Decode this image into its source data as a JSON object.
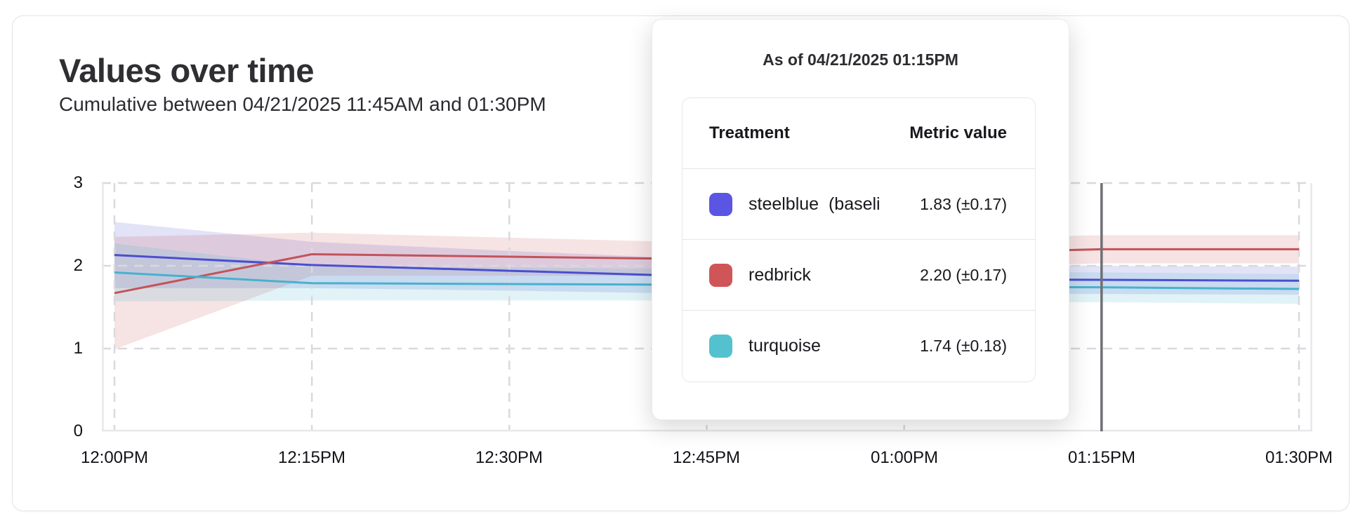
{
  "card": {
    "title": "Values over time",
    "subtitle": "Cumulative between 04/21/2025 11:45AM and 01:30PM"
  },
  "tooltip": {
    "title": "As of 04/21/2025 01:15PM",
    "columns": [
      "Treatment",
      "Metric value"
    ],
    "rows": [
      {
        "label": "steelblue  (baseli",
        "value": "1.83 (±0.17)",
        "swatch": "#5b55e3"
      },
      {
        "label": "redbrick",
        "value": "2.20 (±0.17)",
        "swatch": "#d05558"
      },
      {
        "label": "turquoise",
        "value": "1.74 (±0.18)",
        "swatch": "#53c2ce"
      }
    ]
  },
  "chart_data": {
    "type": "line",
    "title": "Values over time",
    "x": [
      "12:00PM",
      "12:15PM",
      "12:30PM",
      "12:45PM",
      "01:00PM",
      "01:15PM",
      "01:30PM"
    ],
    "y_ticks": [
      0,
      1,
      2,
      3
    ],
    "ylim": [
      0,
      3
    ],
    "grid": true,
    "hover_x": "01:15PM",
    "hover_line_color": "#6f6f73",
    "series": [
      {
        "name": "steelblue (baseline)",
        "color": "#4a4ecf",
        "values": [
          2.13,
          2.01,
          1.94,
          1.87,
          1.84,
          1.83,
          1.82
        ],
        "halfwidth": [
          0.4,
          0.28,
          0.24,
          0.21,
          0.18,
          0.17,
          0.17
        ]
      },
      {
        "name": "redbrick",
        "color": "#c4525a",
        "values": [
          1.67,
          2.14,
          2.11,
          2.08,
          2.14,
          2.2,
          2.2
        ],
        "halfwidth": [
          0.68,
          0.26,
          0.23,
          0.2,
          0.18,
          0.17,
          0.17
        ]
      },
      {
        "name": "turquoise",
        "color": "#46b2cd",
        "values": [
          1.92,
          1.79,
          1.78,
          1.77,
          1.75,
          1.74,
          1.72
        ],
        "halfwidth": [
          0.35,
          0.21,
          0.2,
          0.19,
          0.19,
          0.18,
          0.18
        ]
      }
    ]
  }
}
